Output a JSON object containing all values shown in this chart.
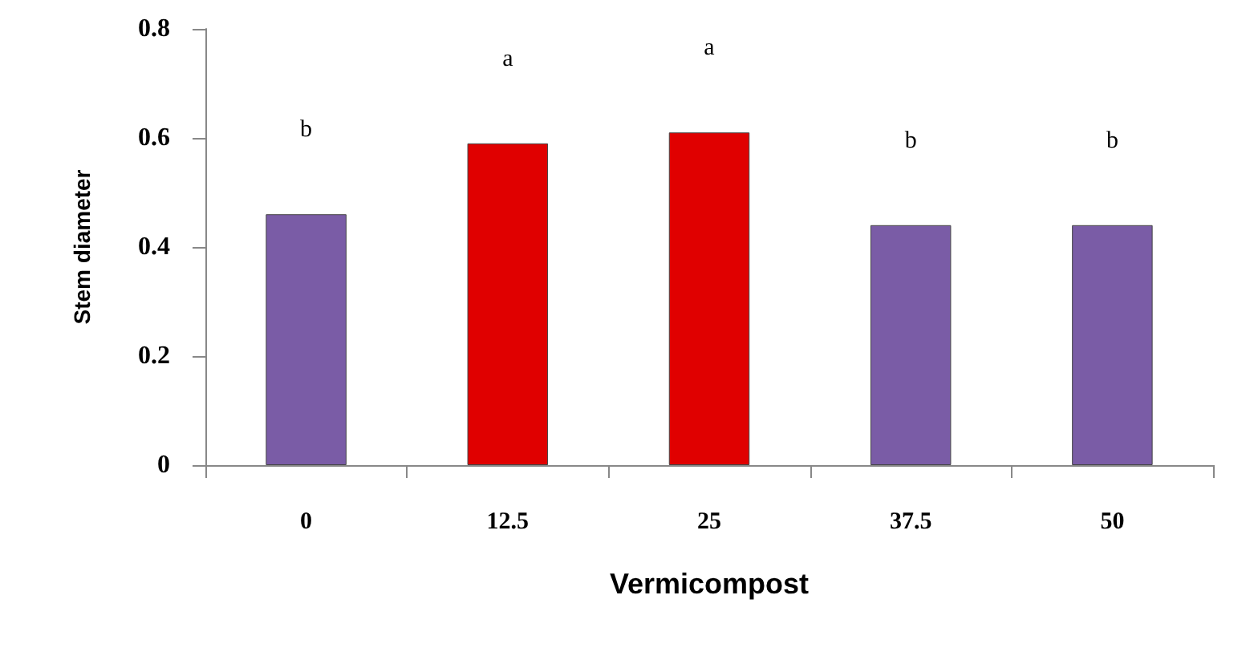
{
  "chart_data": {
    "type": "bar",
    "xlabel": "Vermicompost",
    "ylabel": "Stem diameter",
    "categories": [
      "0",
      "12.5",
      "25",
      "37.5",
      "50"
    ],
    "values": [
      0.46,
      0.59,
      0.61,
      0.44,
      0.44
    ],
    "colors": [
      "#7a5ca6",
      "#e00000",
      "#e00000",
      "#7a5ca6",
      "#7a5ca6"
    ],
    "ylim": [
      0,
      0.8
    ],
    "yticks": [
      0,
      0.2,
      0.4,
      0.6,
      0.8
    ],
    "grid": false,
    "annotations": [
      "b",
      "a",
      "a",
      "b",
      "b"
    ]
  }
}
